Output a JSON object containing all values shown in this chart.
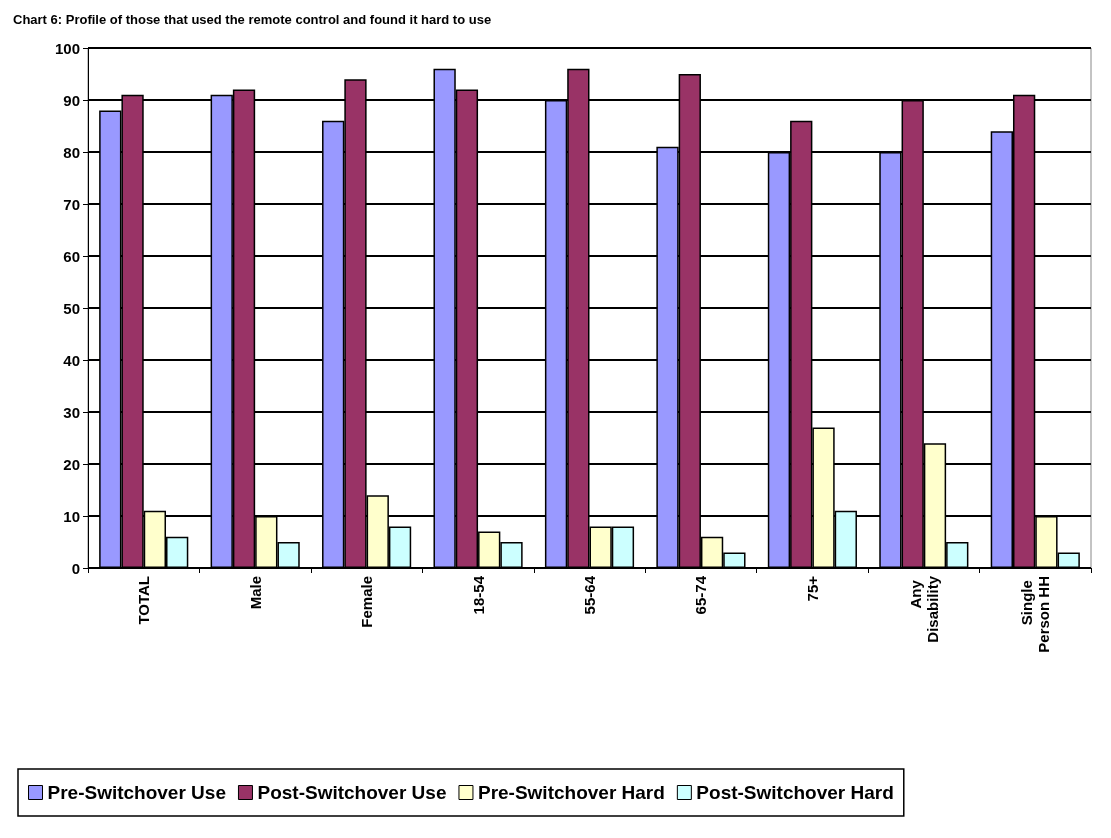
{
  "chart_data": {
    "type": "bar",
    "title": "Chart 6: Profile of those that used the remote control and found it hard to use",
    "categories": [
      "TOTAL",
      "Male",
      "Female",
      "18-54",
      "55-64",
      "65-74",
      "75+",
      "Any Disability",
      "Single Person HH"
    ],
    "series": [
      {
        "name": "Pre-Switchover Use",
        "color": "#9999ff",
        "values": [
          88,
          91,
          86,
          96,
          90,
          81,
          80,
          80,
          84
        ]
      },
      {
        "name": "Post-Switchover Use",
        "color": "#993366",
        "values": [
          91,
          92,
          94,
          92,
          96,
          95,
          86,
          90,
          91
        ]
      },
      {
        "name": "Pre-Switchover Hard",
        "color": "#ffffcc",
        "values": [
          11,
          10,
          14,
          7,
          8,
          6,
          27,
          24,
          10
        ]
      },
      {
        "name": "Post-Switchover Hard",
        "color": "#ccffff",
        "values": [
          6,
          5,
          8,
          5,
          8,
          3,
          11,
          5,
          3
        ]
      }
    ],
    "ylim": [
      0,
      100
    ],
    "yticks": [
      0,
      10,
      20,
      30,
      40,
      50,
      60,
      70,
      80,
      90,
      100
    ],
    "grid": "y",
    "legend": "bottom"
  }
}
